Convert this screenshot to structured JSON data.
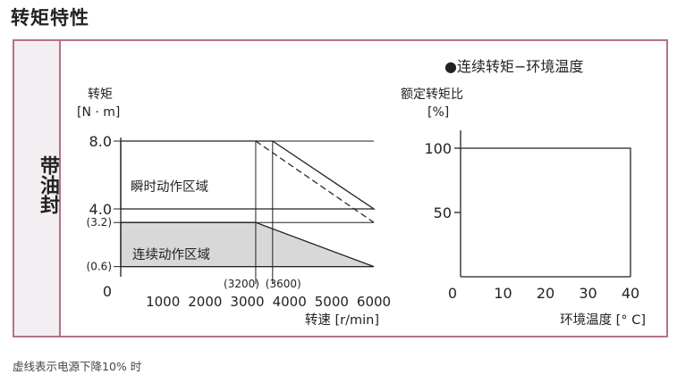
{
  "page_title": "转矩特性",
  "side_label": "带油封",
  "footnote": "虚线表示电源下降10% 时",
  "chart_data": [
    {
      "type": "area",
      "ylabel": "转矩",
      "yunit": "[N · m]",
      "xlabel": "转速 [r/min]",
      "ylim": [
        0,
        8.0
      ],
      "xlim": [
        0,
        6000
      ],
      "y_ticks": [
        {
          "value": 8.0,
          "label": "8.0"
        },
        {
          "value": 4.0,
          "label": "4.0"
        },
        {
          "value": 3.2,
          "label": "(3.2)"
        },
        {
          "value": 0.6,
          "label": "(0.6)"
        },
        {
          "value": 0,
          "label": "0"
        }
      ],
      "x_ticks": [
        1000,
        2000,
        3000,
        4000,
        5000,
        6000
      ],
      "x_annotations": [
        {
          "value": 3200,
          "label": "(3200)"
        },
        {
          "value": 3600,
          "label": "(3600)"
        }
      ],
      "regions": [
        {
          "name": "瞬时动作区域",
          "points": [
            [
              0,
              8.0
            ],
            [
              3600,
              8.0
            ],
            [
              6000,
              4.0
            ],
            [
              0,
              4.0
            ]
          ]
        },
        {
          "name": "连续动作区域",
          "points": [
            [
              0,
              3.2
            ],
            [
              3200,
              3.2
            ],
            [
              6000,
              0.6
            ],
            [
              0,
              0.6
            ]
          ],
          "fill": "#d8d8d8"
        }
      ],
      "dashed_line": [
        [
          3200,
          8.0
        ],
        [
          6000,
          3.2
        ]
      ],
      "grid": false
    },
    {
      "type": "line",
      "title": "●连续转矩−环境温度",
      "ylabel": "额定转矩比",
      "yunit": "[%]",
      "xlabel": "环境温度 [° C]",
      "ylim": [
        0,
        100
      ],
      "xlim": [
        0,
        40
      ],
      "y_ticks": [
        100,
        50
      ],
      "x_ticks": [
        0,
        10,
        20,
        30,
        40
      ],
      "series": [
        {
          "x": [
            0,
            40,
            40
          ],
          "y": [
            100,
            100,
            0
          ]
        }
      ],
      "grid": false
    }
  ]
}
